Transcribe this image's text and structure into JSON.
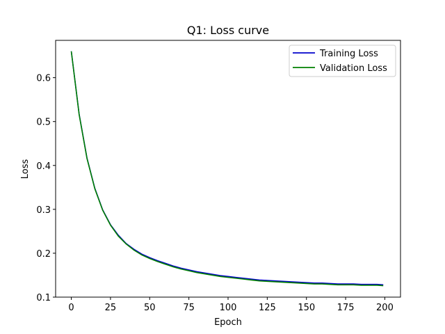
{
  "chart_data": {
    "type": "line",
    "title": "Q1: Loss curve",
    "xlabel": "Epoch",
    "ylabel": "Loss",
    "xlim": [
      -10,
      210
    ],
    "ylim": [
      0.1,
      0.685
    ],
    "xticks": [
      0,
      25,
      50,
      75,
      100,
      125,
      150,
      175,
      200
    ],
    "yticks": [
      0.1,
      0.2,
      0.3,
      0.4,
      0.5,
      0.6
    ],
    "ytick_labels": [
      "0.1",
      "0.2",
      "0.3",
      "0.4",
      "0.5",
      "0.6"
    ],
    "grid": false,
    "legend_position": "top-right",
    "x": [
      0,
      5,
      10,
      15,
      20,
      25,
      30,
      35,
      40,
      45,
      50,
      55,
      60,
      65,
      70,
      75,
      80,
      85,
      90,
      95,
      100,
      105,
      110,
      115,
      120,
      125,
      130,
      135,
      140,
      145,
      150,
      155,
      160,
      165,
      170,
      175,
      180,
      185,
      190,
      195,
      199
    ],
    "series": [
      {
        "name": "Training Loss",
        "color": "#0000cc",
        "values": [
          0.66,
          0.517,
          0.417,
          0.348,
          0.299,
          0.265,
          0.241,
          0.222,
          0.209,
          0.198,
          0.19,
          0.183,
          0.177,
          0.171,
          0.166,
          0.162,
          0.158,
          0.155,
          0.152,
          0.149,
          0.147,
          0.145,
          0.143,
          0.141,
          0.139,
          0.138,
          0.137,
          0.136,
          0.135,
          0.134,
          0.133,
          0.132,
          0.132,
          0.131,
          0.13,
          0.13,
          0.13,
          0.129,
          0.129,
          0.129,
          0.128
        ]
      },
      {
        "name": "Validation Loss",
        "color": "#008000",
        "values": [
          0.66,
          0.516,
          0.416,
          0.347,
          0.298,
          0.264,
          0.239,
          0.221,
          0.207,
          0.196,
          0.188,
          0.181,
          0.175,
          0.169,
          0.164,
          0.16,
          0.156,
          0.153,
          0.15,
          0.147,
          0.145,
          0.143,
          0.141,
          0.139,
          0.137,
          0.136,
          0.135,
          0.134,
          0.133,
          0.132,
          0.131,
          0.13,
          0.13,
          0.129,
          0.128,
          0.128,
          0.128,
          0.127,
          0.127,
          0.127,
          0.126
        ]
      }
    ]
  }
}
